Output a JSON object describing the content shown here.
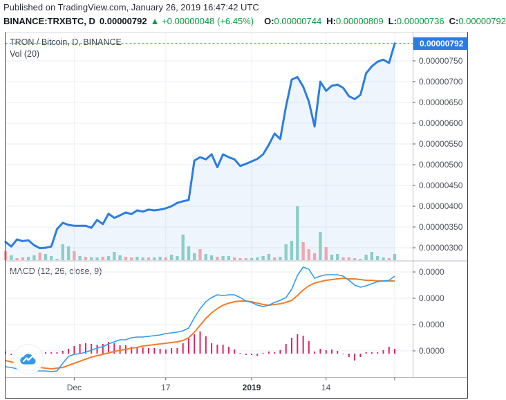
{
  "header": {
    "published_line": "Published on TradingView.com, January 26, 2019 16:47:42 UTC",
    "ticker": "BINANCE:TRXBTC, D",
    "last_value": "0.00000792",
    "arrow": "▲",
    "change": "+0.00000048 (+6.45%)",
    "ohlc": [
      {
        "label": "O:",
        "value": "0.00000744"
      },
      {
        "label": "H:",
        "value": "0.00000809"
      },
      {
        "label": "L:",
        "value": "0.00000736"
      },
      {
        "label": "C:",
        "value": "0.00000792"
      }
    ]
  },
  "price_panel": {
    "legend": "TRON / Bitcoin, D, BINANCE",
    "volume_legend": "Vol (20)",
    "last_price_badge": "0.00000792",
    "axis_labels": [
      "0.00000750",
      "0.00000700",
      "0.00000650",
      "0.00000600",
      "0.00000550",
      "0.00000500",
      "0.00000450",
      "0.00000400",
      "0.00000350",
      "0.00000300"
    ]
  },
  "macd_panel": {
    "legend": "MACD (12, 26, close, 9)",
    "axis_labels": [
      "0.0000",
      "0.0000",
      "0.0000",
      "0.0000"
    ]
  },
  "time_axis": {
    "labels": [
      {
        "text": "Dec",
        "bold": false,
        "day_index": 12
      },
      {
        "text": "17",
        "bold": false,
        "day_index": 28
      },
      {
        "text": "2019",
        "bold": true,
        "day_index": 43
      },
      {
        "text": "14",
        "bold": false,
        "day_index": 56
      }
    ]
  },
  "colors": {
    "accent_blue": "#2A7DE1",
    "area_fill": "rgba(42,125,225,0.08)",
    "volume_up": "#8CCEC6",
    "volume_down": "#F0A6AF",
    "macd_line": "#2E9BF0",
    "signal_line": "#F57B2A",
    "histogram": "#E0245E",
    "header_green": "#089B41",
    "grid": "#EAEEF5",
    "divider": "#B7BBC5",
    "frame_dark": "#40434B",
    "frame_light": "#D8DBE2",
    "axis_text": "#51555F"
  },
  "chart_data": {
    "type": "line",
    "title": "TRON / Bitcoin, D, BINANCE",
    "subtitle_indicators": [
      "Vol (20)",
      "MACD (12, 26, close, 9)"
    ],
    "price_unit": "BTC x 1e-8",
    "x_tick_labels": [
      "Dec",
      "17",
      "2019",
      "14"
    ],
    "y_ticks_price": [
      750,
      700,
      650,
      600,
      550,
      500,
      450,
      400,
      350,
      300
    ],
    "last_price": 792,
    "legend_position": "top-left",
    "grid": true,
    "close": [
      314,
      303,
      320,
      316,
      318,
      306,
      299,
      300,
      303,
      345,
      360,
      355,
      353,
      353,
      353,
      348,
      367,
      357,
      382,
      372,
      378,
      385,
      381,
      390,
      387,
      392,
      390,
      392,
      395,
      400,
      408,
      412,
      415,
      510,
      518,
      513,
      525,
      494,
      525,
      518,
      513,
      497,
      502,
      508,
      514,
      525,
      548,
      575,
      562,
      640,
      705,
      711,
      688,
      652,
      592,
      700,
      678,
      690,
      693,
      685,
      665,
      658,
      668,
      720,
      737,
      748,
      753,
      745,
      792
    ],
    "volume": {
      "heights_rel": [
        13,
        7,
        3,
        4,
        5,
        7,
        11,
        9,
        6,
        2,
        23,
        20,
        13,
        6,
        5,
        4,
        4,
        5,
        6,
        12,
        7,
        5,
        4,
        5,
        4,
        4,
        4,
        5,
        4,
        8,
        6,
        37,
        20,
        10,
        16,
        9,
        7,
        5,
        6,
        6,
        4,
        3,
        3,
        3,
        4,
        6,
        9,
        4,
        5,
        23,
        28,
        78,
        26,
        16,
        10,
        41,
        19,
        8,
        9,
        4,
        4,
        3,
        2,
        8,
        12,
        6,
        4,
        3,
        9
      ],
      "directions": [
        "down",
        "up",
        "down",
        "down",
        "up",
        "up",
        "down",
        "up",
        "up",
        "up",
        "up",
        "up",
        "down",
        "up",
        "down",
        "up",
        "up",
        "down",
        "up",
        "up",
        "up",
        "down",
        "down",
        "up",
        "up",
        "down",
        "up",
        "up",
        "down",
        "up",
        "up",
        "up",
        "up",
        "up",
        "down",
        "up",
        "up",
        "down",
        "up",
        "up",
        "down",
        "down",
        "down",
        "up",
        "up",
        "up",
        "up",
        "down",
        "up",
        "up",
        "up",
        "up",
        "down",
        "down",
        "down",
        "up",
        "down",
        "up",
        "up",
        "down",
        "down",
        "down",
        "up",
        "up",
        "up",
        "up",
        "up",
        "down",
        "up"
      ]
    },
    "macd": {
      "note": "axis labels all display 0.0000; values are relative plot units",
      "macd_rel": [
        -19,
        -20,
        -22,
        -24,
        -24,
        -25,
        -25,
        -25,
        -26,
        -25,
        -14,
        -4,
        -1,
        0,
        2,
        5,
        8,
        10,
        14,
        17,
        20,
        20,
        23,
        24,
        24,
        25,
        26,
        27,
        29,
        30,
        31,
        33,
        37,
        52,
        65,
        75,
        81,
        85,
        84,
        85,
        85,
        81,
        76,
        74,
        70,
        68,
        70,
        74,
        77,
        81,
        93,
        113,
        125,
        122,
        109,
        112,
        114,
        114,
        114,
        112,
        106,
        99,
        96,
        98,
        101,
        104,
        105,
        106,
        112
      ],
      "signal_rel": [
        -10,
        -12,
        -14,
        -16,
        -18,
        -19,
        -20,
        -21,
        -22,
        -21,
        -20,
        -17,
        -14,
        -11,
        -8,
        -5,
        -3,
        -1,
        1,
        3,
        5,
        6,
        8,
        9,
        11,
        12,
        13,
        14,
        15,
        16,
        17,
        19,
        23,
        31,
        41,
        51,
        59,
        65,
        70,
        73,
        75,
        76,
        76,
        75,
        73,
        71,
        70,
        71,
        72,
        74,
        77,
        84,
        92,
        98,
        102,
        104,
        106,
        107,
        108,
        109,
        108,
        108,
        107,
        106,
        106,
        105,
        105,
        105,
        105
      ],
      "histogram_rel": [
        3,
        -2,
        -2,
        -3,
        -3,
        -2,
        3,
        2,
        2,
        2,
        4,
        7,
        11,
        14,
        15,
        14,
        13,
        14,
        17,
        15,
        12,
        12,
        10,
        10,
        9,
        8,
        8,
        7,
        6,
        8,
        8,
        15,
        22,
        28,
        32,
        25,
        15,
        13,
        13,
        10,
        6,
        1,
        -2,
        -2,
        -3,
        1,
        3,
        2,
        5,
        14,
        23,
        28,
        26,
        18,
        3,
        7,
        5,
        6,
        4,
        0,
        -5,
        -10,
        -5,
        2,
        2,
        2,
        5,
        10,
        7
      ]
    }
  }
}
